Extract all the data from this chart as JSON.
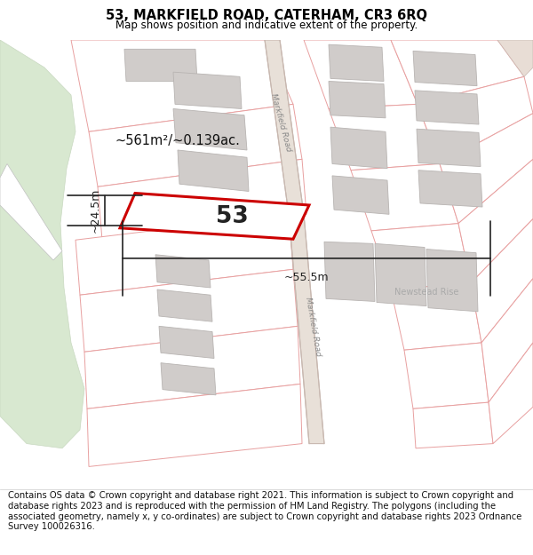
{
  "title": "53, MARKFIELD ROAD, CATERHAM, CR3 6RQ",
  "subtitle": "Map shows position and indicative extent of the property.",
  "footer": "Contains OS data © Crown copyright and database right 2021. This information is subject to Crown copyright and database rights 2023 and is reproduced with the permission of HM Land Registry. The polygons (including the associated geometry, namely x, y co-ordinates) are subject to Crown copyright and database rights 2023 Ordnance Survey 100026316.",
  "map_bg": "#f7f4f0",
  "plot_fill": "#ffffff",
  "plot_edge": "#e8a0a0",
  "road_fill": "#e8e0d8",
  "road_edge": "#c8b8b0",
  "building_fill": "#d0ccca",
  "building_edge": "#b8b4b2",
  "green_fill": "#d8e8d0",
  "green_edge": "#c8d8c0",
  "highlight_color": "#cc0000",
  "road_label": "Markfield Road",
  "road_label2": "Markfield Road",
  "newstead_label": "Newstead Rise",
  "area_label": "~561m²/~0.139ac.",
  "property_label": "53",
  "dim_width": "~55.5m",
  "dim_height": "~24.5m",
  "title_fontsize": 10.5,
  "subtitle_fontsize": 8.5,
  "footer_fontsize": 7.2
}
